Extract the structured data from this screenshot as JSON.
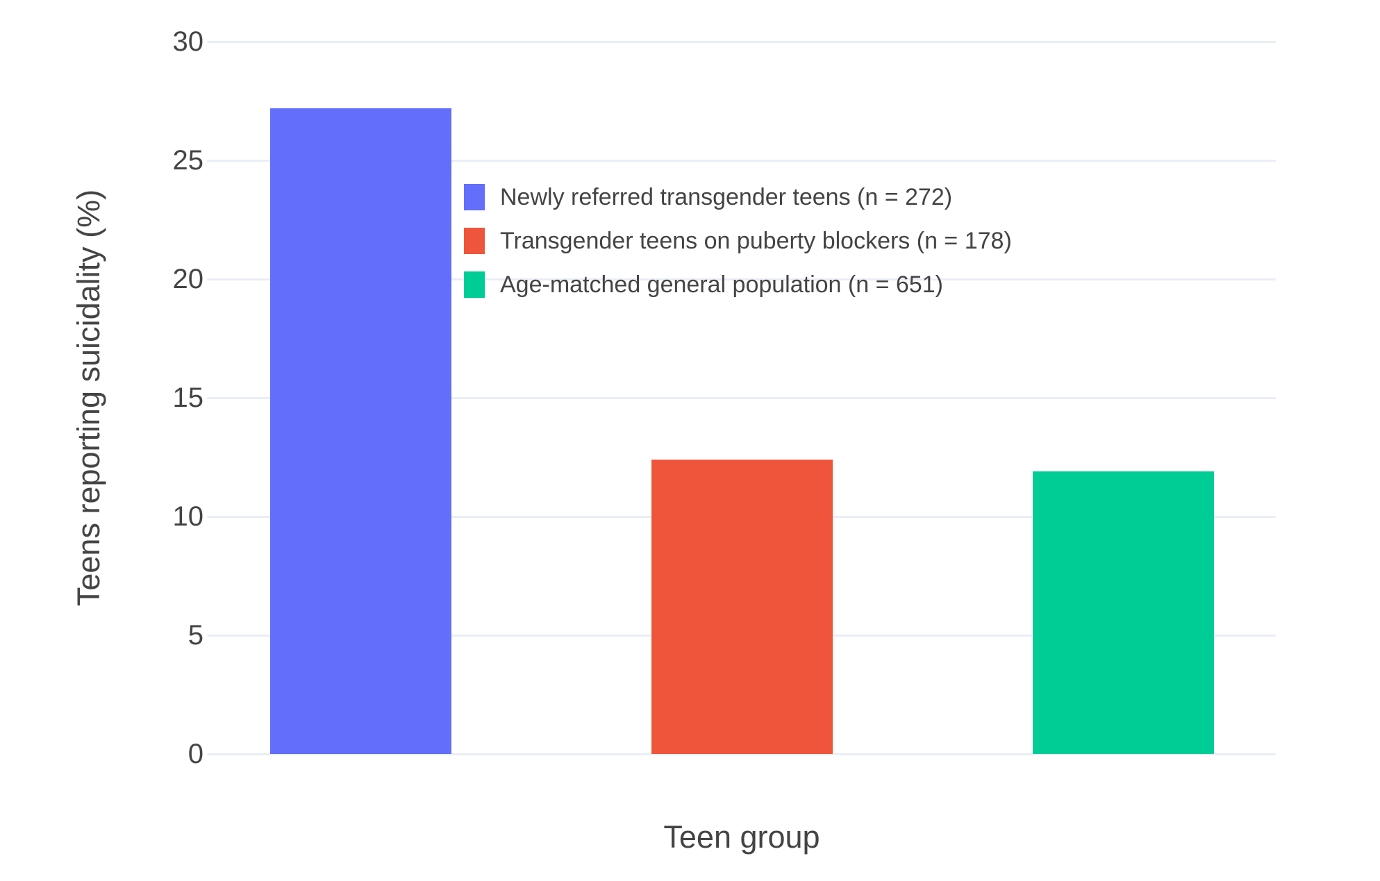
{
  "chart_data": {
    "type": "bar",
    "title": "",
    "xlabel": "Teen group",
    "ylabel": "Teens reporting suicidality (%)",
    "ylim": [
      0,
      30
    ],
    "yticks": [
      0,
      5,
      10,
      15,
      20,
      25,
      30
    ],
    "grid": true,
    "legend_position": "inside-top-right",
    "series": [
      {
        "name": "Newly referred transgender teens (n = 272)",
        "value": 27.2,
        "color": "#636EFA"
      },
      {
        "name": "Transgender teens on puberty blockers (n = 178)",
        "value": 12.4,
        "color": "#EF553B"
      },
      {
        "name": "Age-matched general population (n = 651)",
        "value": 11.9,
        "color": "#00CC96"
      }
    ],
    "colors": {
      "gridline": "#E9EEF6",
      "text": "#444444",
      "background": "#FFFFFF"
    }
  }
}
